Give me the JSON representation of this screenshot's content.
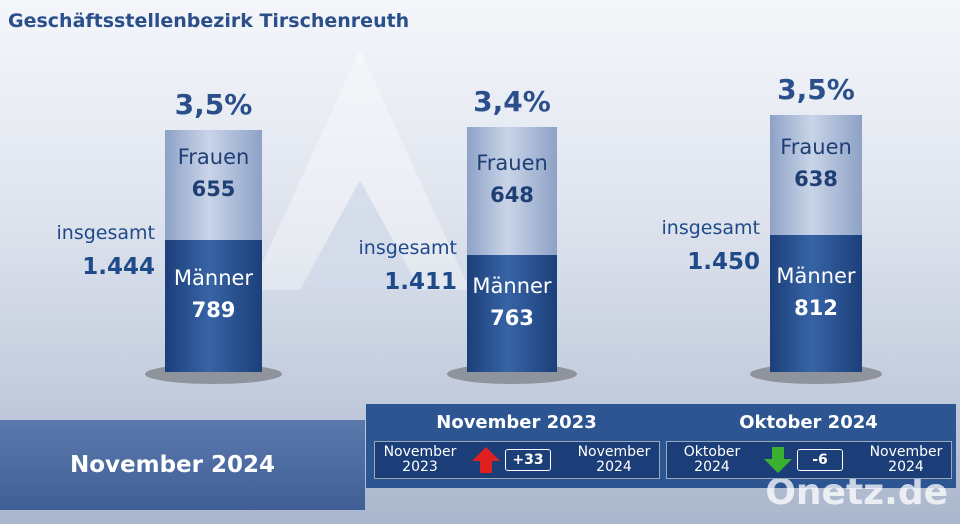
{
  "title": "Geschäftsstellenbezirk Tirschenreuth",
  "columns": [
    {
      "rate": "3,5%",
      "total_label": "insgesamt",
      "total": "1.444",
      "women_label": "Frauen",
      "women": "655",
      "men_label": "Männer",
      "men": "789"
    },
    {
      "rate": "3,4%",
      "total_label": "insgesamt",
      "total": "1.411",
      "women_label": "Frauen",
      "women": "648",
      "men_label": "Männer",
      "men": "763"
    },
    {
      "rate": "3,5%",
      "total_label": "insgesamt",
      "total": "1.450",
      "women_label": "Frauen",
      "women": "638",
      "men_label": "Männer",
      "men": "812"
    }
  ],
  "current_period": "November 2024",
  "comparisons": [
    {
      "heading": "November 2023",
      "from": [
        "November",
        "2023"
      ],
      "change": "+33",
      "to": [
        "November",
        "2024"
      ]
    },
    {
      "heading": "Oktober 2024",
      "from": [
        "Oktober",
        "2024"
      ],
      "change": "-6",
      "to": [
        "November",
        "2024"
      ]
    }
  ],
  "watermark": "Onetz.de"
}
